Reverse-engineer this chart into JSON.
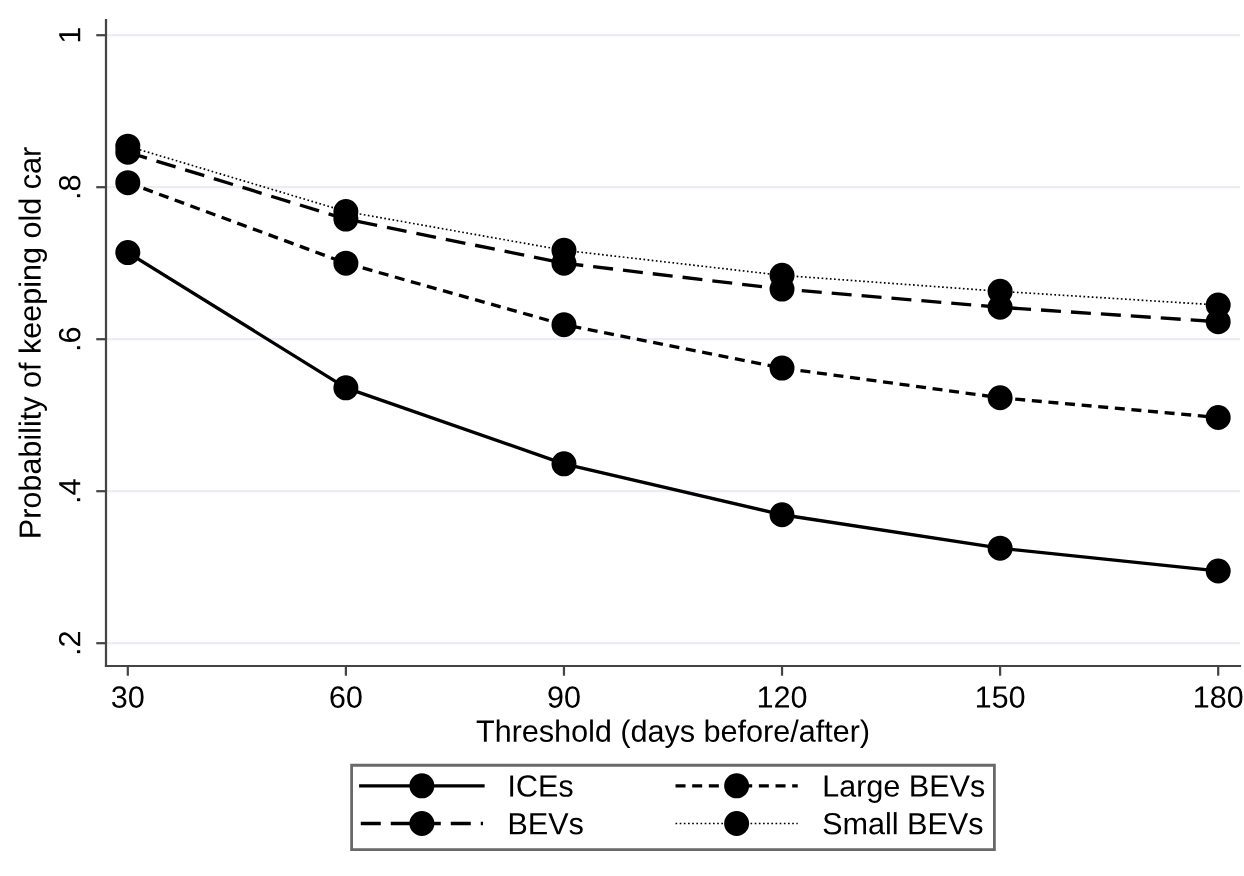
{
  "chart_data": {
    "type": "line",
    "xlabel": "Threshold (days before/after)",
    "ylabel": "Probability of keeping old car",
    "x": [
      30,
      60,
      90,
      120,
      150,
      180
    ],
    "series": [
      {
        "name": "ICEs",
        "color": "#000000",
        "line_style": "solid",
        "values": [
          0.714,
          0.536,
          0.436,
          0.369,
          0.325,
          0.295
        ]
      },
      {
        "name": "BEVs",
        "color": "#000000",
        "line_style": "dashed",
        "values": [
          0.846,
          0.758,
          0.7,
          0.666,
          0.642,
          0.623
        ]
      },
      {
        "name": "Large BEVs",
        "color": "#000000",
        "line_style": "densedash",
        "values": [
          0.806,
          0.7,
          0.619,
          0.562,
          0.523,
          0.497
        ]
      },
      {
        "name": "Small BEVs",
        "color": "#000000",
        "line_style": "dotted",
        "values": [
          0.854,
          0.768,
          0.717,
          0.684,
          0.663,
          0.645
        ]
      }
    ],
    "xlim": [
      27,
      183
    ],
    "xticks": [
      30,
      60,
      90,
      120,
      150,
      180
    ],
    "ylim": [
      0.17,
      1.02
    ],
    "yticks": [
      {
        "value": 0.2,
        "label": ".2"
      },
      {
        "value": 0.4,
        "label": ".4"
      },
      {
        "value": 0.6,
        "label": ".6"
      },
      {
        "value": 0.8,
        "label": ".8"
      },
      {
        "value": 1,
        "label": "1"
      }
    ],
    "grid": "y",
    "legend": "bottom",
    "marker": "circle"
  }
}
